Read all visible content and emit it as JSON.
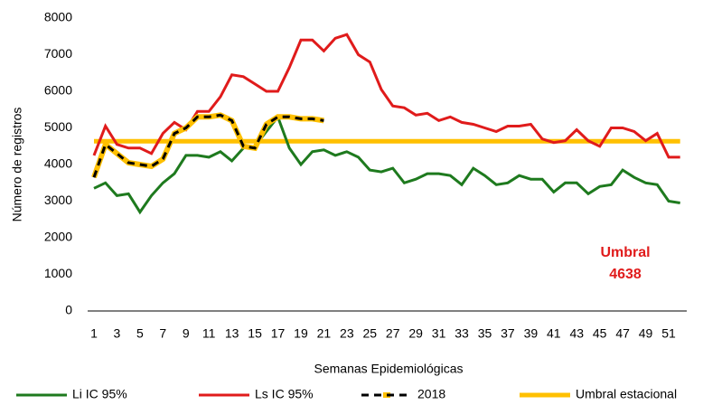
{
  "chart_data": {
    "type": "line",
    "x_label": "Semanas Epidemiológicas",
    "y_label": "Número de registros",
    "categories": [
      1,
      null,
      3,
      null,
      5,
      null,
      7,
      null,
      9,
      null,
      11,
      null,
      13,
      null,
      15,
      null,
      17,
      null,
      19,
      null,
      21,
      null,
      23,
      null,
      25,
      null,
      27,
      null,
      29,
      null,
      31,
      null,
      33,
      null,
      35,
      null,
      37,
      null,
      39,
      null,
      41,
      null,
      43,
      null,
      45,
      null,
      47,
      null,
      49,
      null,
      51,
      null
    ],
    "ylim": [
      0,
      8000
    ],
    "yticks": [
      0,
      1000,
      2000,
      3000,
      4000,
      5000,
      6000,
      7000,
      8000
    ],
    "grid": false,
    "legend": "bottom",
    "series": [
      {
        "name": "Li IC 95%",
        "color": "#1e7a1e",
        "values": [
          3350,
          3500,
          3150,
          3200,
          2700,
          3150,
          3500,
          3750,
          4250,
          4250,
          4200,
          4350,
          4100,
          4450,
          4500,
          4900,
          5300,
          4450,
          4000,
          4350,
          4400,
          4250,
          4350,
          4200,
          3850,
          3800,
          3900,
          3500,
          3600,
          3750,
          3750,
          3700,
          3450,
          3900,
          3700,
          3450,
          3500,
          3700,
          3600,
          3600,
          3250,
          3500,
          3500,
          3200,
          3400,
          3450,
          3850,
          3650,
          3500,
          3450,
          3000,
          2950
        ]
      },
      {
        "name": "Ls IC 95%",
        "color": "#e01b1b",
        "values": [
          4250,
          5050,
          4550,
          4450,
          4450,
          4300,
          4850,
          5150,
          4950,
          5450,
          5450,
          5850,
          6450,
          6400,
          6200,
          6000,
          6000,
          6650,
          7400,
          7400,
          7100,
          7450,
          7550,
          7000,
          6800,
          6050,
          5600,
          5550,
          5350,
          5400,
          5200,
          5300,
          5150,
          5100,
          5000,
          4900,
          5050,
          5050,
          5100,
          4700,
          4600,
          4650,
          4950,
          4650,
          4500,
          5000,
          5000,
          4900,
          4650,
          4850,
          4200,
          4200
        ]
      },
      {
        "name": "2018",
        "color": "#000000",
        "highlight": "#ffc000",
        "dashed": true,
        "values": [
          3650,
          4550,
          4300,
          4050,
          4000,
          3950,
          4150,
          4850,
          5000,
          5300,
          5300,
          5350,
          5200,
          4500,
          4450,
          5100,
          5300,
          5300,
          5250,
          5250,
          5200,
          null,
          null,
          null,
          null,
          null,
          null,
          null,
          null,
          null,
          null,
          null,
          null,
          null,
          null,
          null,
          null,
          null,
          null,
          null,
          null,
          null,
          null,
          null,
          null,
          null,
          null,
          null,
          null,
          null,
          null,
          null
        ]
      },
      {
        "name": "Umbral estacional",
        "color": "#ffc000",
        "values": [
          4638,
          4638,
          4638,
          4638,
          4638,
          4638,
          4638,
          4638,
          4638,
          4638,
          4638,
          4638,
          4638,
          4638,
          4638,
          4638,
          4638,
          4638,
          4638,
          4638,
          4638,
          4638,
          4638,
          4638,
          4638,
          4638,
          4638,
          4638,
          4638,
          4638,
          4638,
          4638,
          4638,
          4638,
          4638,
          4638,
          4638,
          4638,
          4638,
          4638,
          4638,
          4638,
          4638,
          4638,
          4638,
          4638,
          4638,
          4638,
          4638,
          4638,
          4638,
          4638
        ]
      }
    ],
    "annotation": {
      "text": "Umbral",
      "value": 4638,
      "color": "#e01b1b"
    }
  }
}
